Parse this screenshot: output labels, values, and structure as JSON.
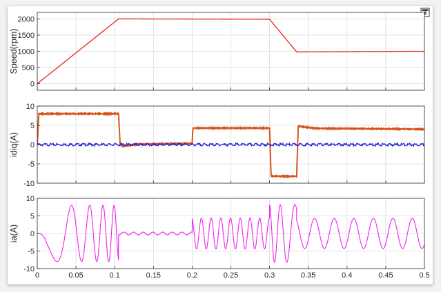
{
  "chart_data": [
    {
      "type": "line",
      "ylabel": "Speed(rpm)",
      "xlim": [
        0,
        0.5
      ],
      "ylim": [
        -200,
        2200
      ],
      "yticks": [
        0,
        500,
        1000,
        1500,
        2000
      ],
      "xticks_shown": false,
      "grid": true,
      "series": [
        {
          "color": "#e8302a",
          "x": [
            0,
            0.105,
            0.3,
            0.335,
            0.5
          ],
          "y": [
            0,
            2000,
            1990,
            980,
            1000
          ]
        }
      ]
    },
    {
      "type": "line",
      "ylabel": "idiq(A)",
      "xlim": [
        0,
        0.5
      ],
      "ylim": [
        -10,
        10
      ],
      "yticks": [
        -10,
        -5,
        0,
        5,
        10
      ],
      "xticks_shown": false,
      "grid": true,
      "series": [
        {
          "color": "#d9541c",
          "x": [
            0,
            0.002,
            0.105,
            0.107,
            0.11,
            0.13,
            0.2,
            0.201,
            0.3,
            0.302,
            0.335,
            0.337,
            0.34,
            0.36,
            0.5
          ],
          "y": [
            0,
            8,
            8,
            0,
            -0.4,
            0.1,
            0.3,
            4.3,
            4.3,
            -8.2,
            -8.2,
            4.8,
            4.7,
            4.2,
            4.0
          ]
        },
        {
          "color": "#1a1adb",
          "x": [
            0,
            0.5
          ],
          "y": [
            0,
            0
          ]
        }
      ]
    },
    {
      "type": "line",
      "ylabel": "ia(A)",
      "xlim": [
        0,
        0.5
      ],
      "ylim": [
        -10,
        10
      ],
      "yticks": [
        -10,
        -5,
        0,
        5,
        10
      ],
      "xticks": [
        0,
        0.05,
        0.1,
        0.15,
        0.2,
        0.25,
        0.3,
        0.35,
        0.4,
        0.45,
        0.5
      ],
      "xticks_shown": true,
      "grid": true,
      "series": [
        {
          "color": "#ee22ee",
          "amplitude": [
            {
              "x": [
                0.002,
                0.105
              ],
              "amp": 8
            },
            {
              "x": [
                0.105,
                0.2
              ],
              "amp": 0.4
            },
            {
              "x": [
                0.2,
                0.3
              ],
              "amp": 4.4
            },
            {
              "x": [
                0.3,
                0.335
              ],
              "amp": 8.2
            },
            {
              "x": [
                0.335,
                0.5
              ],
              "amp": 4.3
            }
          ],
          "frequency": "proportional to speed"
        }
      ]
    }
  ],
  "toolbar_icon": "restore-axes-icon"
}
